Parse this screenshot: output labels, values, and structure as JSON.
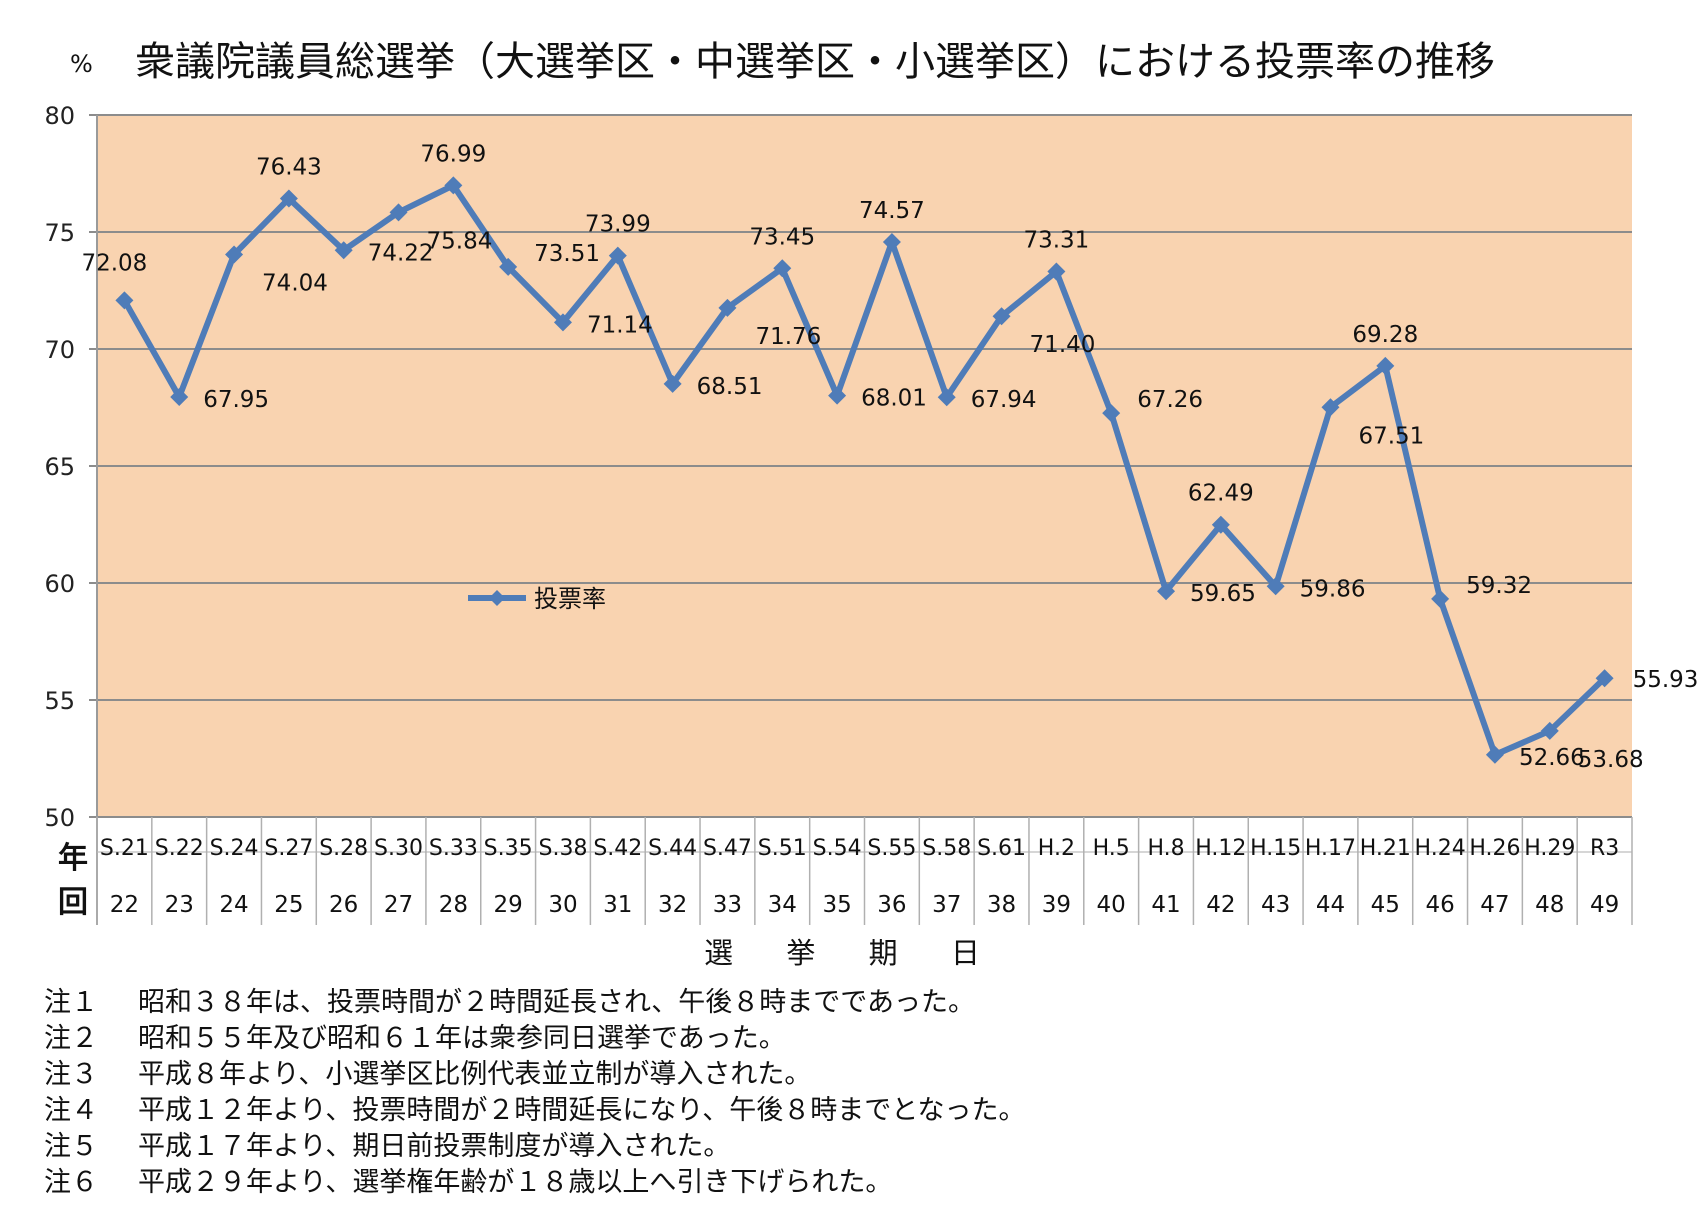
{
  "chart_data": {
    "type": "line",
    "title": "衆議院議員総選挙（大選挙区・中選挙区・小選挙区）における投票率の推移",
    "ylabel": "%",
    "xlabel": "選 挙 期 日",
    "ylim": [
      50,
      80
    ],
    "yticks": [
      "50",
      "55",
      "60",
      "65",
      "70",
      "75",
      "80"
    ],
    "row_labels": {
      "year": "年",
      "session": "回"
    },
    "legend": {
      "label": "投票率",
      "position": "left-middle"
    },
    "colors": {
      "plot_bg": "#f9d3b0",
      "line": "#4f7cb8",
      "grid": "#8c8c8c"
    },
    "categories": [
      "S.21",
      "S.22",
      "S.24",
      "S.27",
      "S.28",
      "S.30",
      "S.33",
      "S.35",
      "S.38",
      "S.42",
      "S.44",
      "S.47",
      "S.51",
      "S.54",
      "S.55",
      "S.58",
      "S.61",
      "H.2",
      "H.5",
      "H.8",
      "H.12",
      "H.15",
      "H.17",
      "H.21",
      "H.24",
      "H.26",
      "H.29",
      "R3"
    ],
    "sessions": [
      "22",
      "23",
      "24",
      "25",
      "26",
      "27",
      "28",
      "29",
      "30",
      "31",
      "32",
      "33",
      "34",
      "35",
      "36",
      "37",
      "38",
      "39",
      "40",
      "41",
      "42",
      "43",
      "44",
      "45",
      "46",
      "47",
      "48",
      "49"
    ],
    "series": [
      {
        "name": "投票率",
        "values": [
          72.08,
          67.95,
          74.04,
          76.43,
          74.22,
          75.84,
          76.99,
          73.51,
          71.14,
          73.99,
          68.51,
          71.76,
          73.45,
          68.01,
          74.57,
          67.94,
          71.4,
          73.31,
          67.26,
          59.65,
          62.49,
          59.86,
          67.51,
          69.28,
          59.32,
          52.66,
          53.68,
          55.93
        ],
        "labels": [
          "72.08",
          "67.95",
          "74.04",
          "76.43",
          "74.22",
          "75.84",
          "76.99",
          "73.51",
          "71.14",
          "73.99",
          "68.51",
          "71.76",
          "73.45",
          "68.01",
          "74.57",
          "67.94",
          "71.40",
          "73.31",
          "67.26",
          "59.65",
          "62.49",
          "59.86",
          "67.51",
          "69.28",
          "59.32",
          "52.66",
          "53.68",
          "55.93"
        ]
      }
    ]
  },
  "notes": [
    {
      "label": "注１",
      "text": "昭和３８年は、投票時間が２時間延長され、午後８時までであった。"
    },
    {
      "label": "注２",
      "text": "昭和５５年及び昭和６１年は衆参同日選挙であった。"
    },
    {
      "label": "注３",
      "text": "平成８年より、小選挙区比例代表並立制が導入された。"
    },
    {
      "label": "注４",
      "text": "平成１２年より、投票時間が２時間延長になり、午後８時までとなった。"
    },
    {
      "label": "注５",
      "text": "平成１７年より、期日前投票制度が導入された。"
    },
    {
      "label": "注６",
      "text": "平成２９年より、選挙権年齢が１８歳以上へ引き下げられた。"
    }
  ]
}
